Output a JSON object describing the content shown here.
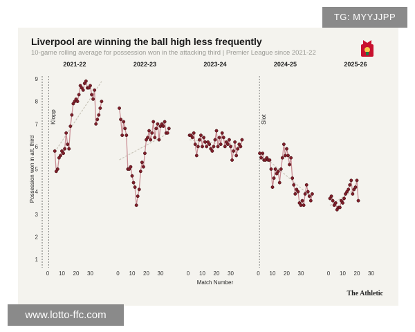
{
  "header": {
    "title": "Liverpool are winning the ball high less frequently",
    "subtitle": "10-game rolling average for possession won in the attacking third | Premier League since 2021-22",
    "credit": "The Athletic"
  },
  "watermarks": {
    "top_right": "TG: MYYJJPP",
    "bottom_left": "www.lotto-ffc.com"
  },
  "colors": {
    "line": "#c98d94",
    "marker_fill": "#7e1f2a",
    "marker_stroke": "#3a0e12",
    "trend": "#c8c4b8",
    "panel_bg": "#f4f3ee",
    "crest_red": "#c8102e"
  },
  "chart_data": {
    "type": "line",
    "title": "Liverpool are winning the ball high less frequently",
    "subtitle": "10-game rolling average for possession won in the attacking third | Premier League since 2021-22",
    "xlabel": "Match Number",
    "ylabel": "Possession won in att. third",
    "xlim": [
      0,
      38
    ],
    "ylim": [
      1,
      9
    ],
    "xticks": [
      0,
      10,
      20,
      30
    ],
    "yticks": [
      1,
      2,
      3,
      4,
      5,
      6,
      7,
      8,
      9
    ],
    "grid": false,
    "annotations": [
      {
        "label": "Klopp",
        "season": "2021-22"
      },
      {
        "label": "Slot",
        "season": "2024-25"
      }
    ],
    "series": [
      {
        "name": "2021-22",
        "x": [
          5,
          6,
          7,
          8,
          9,
          10,
          11,
          12,
          13,
          14,
          15,
          16,
          17,
          18,
          19,
          20,
          21,
          22,
          23,
          24,
          25,
          26,
          27,
          28,
          29,
          30,
          31,
          32,
          33,
          34,
          35,
          36,
          37,
          38
        ],
        "values": [
          5.8,
          4.9,
          5.0,
          5.5,
          5.6,
          5.8,
          5.7,
          5.9,
          6.6,
          6.1,
          5.9,
          6.9,
          7.4,
          7.9,
          8.0,
          8.1,
          8.0,
          8.3,
          8.7,
          8.6,
          8.5,
          8.8,
          8.9,
          8.6,
          8.6,
          8.7,
          8.3,
          8.1,
          8.5,
          7.0,
          7.2,
          7.4,
          7.7,
          8.0
        ]
      },
      {
        "name": "2022-23",
        "x": [
          1,
          2,
          3,
          4,
          5,
          6,
          7,
          8,
          9,
          10,
          11,
          12,
          13,
          14,
          15,
          16,
          17,
          18,
          19,
          20,
          21,
          22,
          23,
          24,
          25,
          26,
          27,
          28,
          29,
          30,
          31,
          32,
          33,
          34,
          35,
          36
        ],
        "values": [
          7.7,
          7.2,
          6.5,
          7.1,
          6.8,
          6.5,
          5.0,
          5.0,
          5.1,
          4.7,
          4.4,
          4.2,
          3.4,
          3.8,
          4.1,
          4.9,
          5.3,
          5.1,
          5.7,
          6.3,
          6.4,
          6.7,
          6.3,
          6.6,
          7.1,
          6.4,
          6.8,
          7.0,
          6.3,
          6.9,
          7.0,
          6.9,
          7.1,
          6.6,
          6.6,
          6.8
        ]
      },
      {
        "name": "2023-24",
        "x": [
          1,
          2,
          3,
          4,
          5,
          6,
          7,
          8,
          9,
          10,
          11,
          12,
          13,
          14,
          15,
          16,
          17,
          18,
          19,
          20,
          21,
          22,
          23,
          24,
          25,
          26,
          27,
          28,
          29,
          30,
          31,
          32,
          33,
          34,
          35,
          36,
          37,
          38
        ],
        "values": [
          6.5,
          6.5,
          6.4,
          6.6,
          6.1,
          5.6,
          6.0,
          6.3,
          6.5,
          6.0,
          6.4,
          6.2,
          6.0,
          6.2,
          6.1,
          5.9,
          5.8,
          6.0,
          6.3,
          6.7,
          6.0,
          6.4,
          6.1,
          6.6,
          6.4,
          6.0,
          6.2,
          6.1,
          6.3,
          6.0,
          5.4,
          5.8,
          6.2,
          5.6,
          5.9,
          6.1,
          6.0,
          6.3
        ]
      },
      {
        "name": "2024-25",
        "x": [
          1,
          2,
          3,
          4,
          5,
          6,
          7,
          8,
          9,
          10,
          11,
          12,
          13,
          14,
          15,
          16,
          17,
          18,
          19,
          20,
          21,
          22,
          23,
          24,
          25,
          26,
          27,
          28,
          29,
          30,
          31,
          32,
          33,
          34,
          35,
          36,
          37,
          38
        ],
        "values": [
          5.7,
          5.5,
          5.7,
          5.4,
          5.4,
          5.5,
          5.4,
          5.4,
          5.0,
          4.2,
          4.6,
          5.0,
          4.8,
          4.9,
          4.4,
          5.0,
          5.5,
          6.1,
          5.6,
          5.9,
          5.6,
          5.2,
          5.5,
          4.6,
          4.3,
          3.9,
          4.1,
          4.0,
          3.5,
          3.4,
          3.6,
          3.4,
          3.9,
          4.3,
          4.0,
          3.8,
          3.6,
          3.9
        ]
      },
      {
        "name": "2025-26",
        "x": [
          1,
          2,
          3,
          4,
          5,
          6,
          7,
          8,
          9,
          10,
          11,
          12,
          13,
          14,
          15,
          16,
          17,
          18,
          19,
          20,
          21
        ],
        "values": [
          3.7,
          3.8,
          3.6,
          3.4,
          3.5,
          3.2,
          3.3,
          3.3,
          3.6,
          3.5,
          3.7,
          3.9,
          4.0,
          4.1,
          4.3,
          4.5,
          3.9,
          4.1,
          4.2,
          4.5,
          3.6
        ]
      }
    ]
  }
}
